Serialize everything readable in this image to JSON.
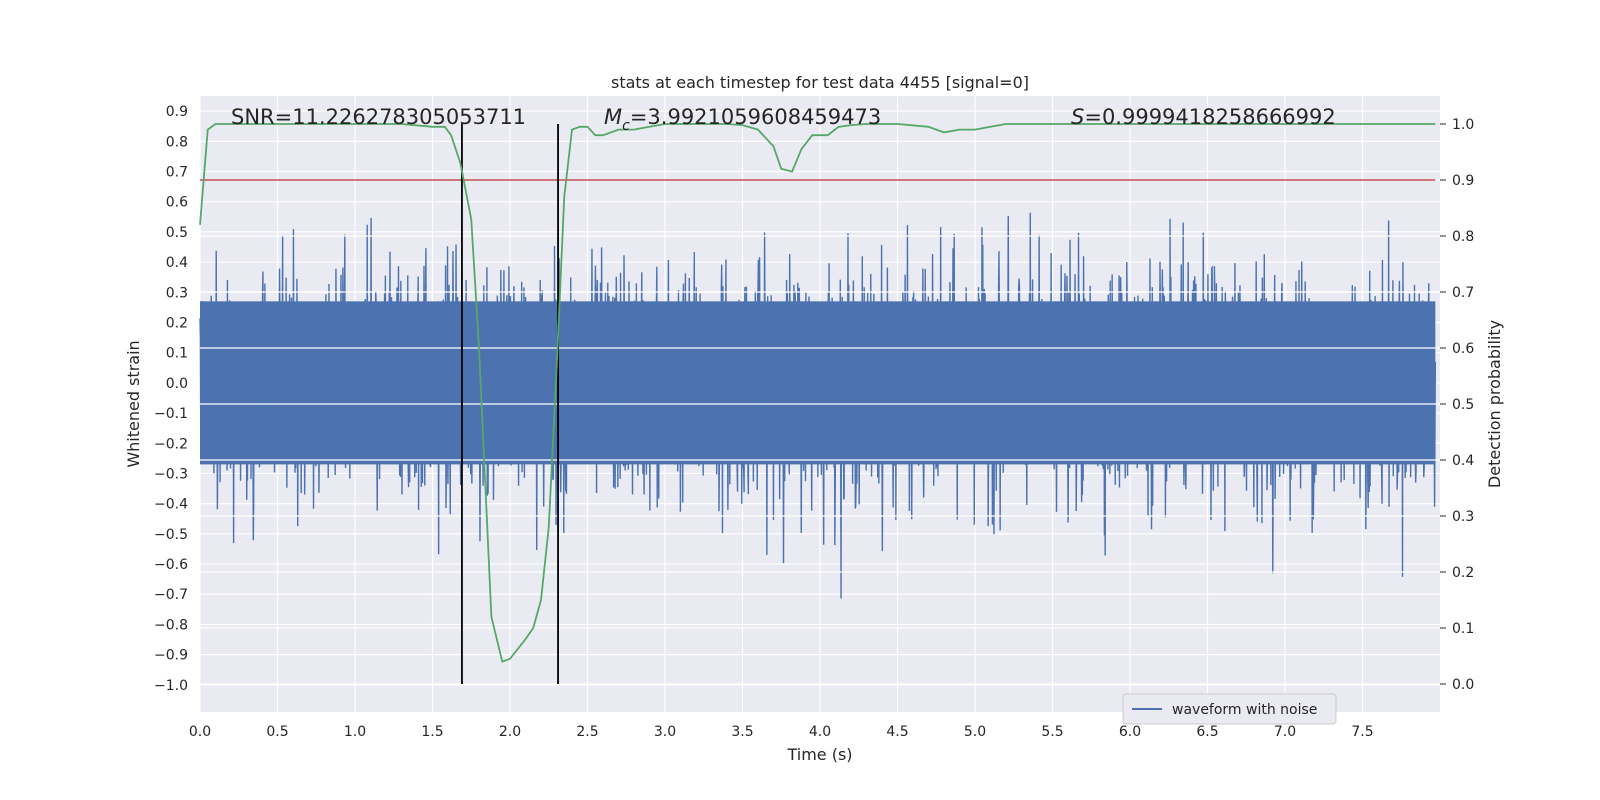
{
  "chart_data": {
    "type": "line",
    "title": "stats at each timestep for test data 4455 [signal=0]",
    "xlabel": "Time (s)",
    "ylabel_left": "Whitened strain",
    "ylabel_right": "Detection probability",
    "xlim": [
      0.0,
      8.0
    ],
    "ylim_left": [
      -1.09,
      0.95
    ],
    "ylim_right": [
      -0.05,
      1.05
    ],
    "x_ticks": [
      "0.0",
      "0.5",
      "1.0",
      "1.5",
      "2.0",
      "2.5",
      "3.0",
      "3.5",
      "4.0",
      "4.5",
      "5.0",
      "5.5",
      "6.0",
      "6.5",
      "7.0",
      "7.5"
    ],
    "x_tick_values": [
      0.0,
      0.5,
      1.0,
      1.5,
      2.0,
      2.5,
      3.0,
      3.5,
      4.0,
      4.5,
      5.0,
      5.5,
      6.0,
      6.5,
      7.0,
      7.5
    ],
    "y_left_ticks": [
      "0.9",
      "0.8",
      "0.7",
      "0.6",
      "0.5",
      "0.4",
      "0.3",
      "0.2",
      "0.1",
      "0.0",
      "−0.1",
      "−0.2",
      "−0.3",
      "−0.4",
      "−0.5",
      "−0.6",
      "−0.7",
      "−0.8",
      "−0.9",
      "−1.0"
    ],
    "y_left_tick_values": [
      0.9,
      0.8,
      0.7,
      0.6,
      0.5,
      0.4,
      0.3,
      0.2,
      0.1,
      0.0,
      -0.1,
      -0.2,
      -0.3,
      -0.4,
      -0.5,
      -0.6,
      -0.7,
      -0.8,
      -0.9,
      -1.0
    ],
    "y_right_ticks": [
      "1.0",
      "0.9",
      "0.8",
      "0.7",
      "0.6",
      "0.5",
      "0.4",
      "0.3",
      "0.2",
      "0.1",
      "0.0"
    ],
    "y_right_tick_values": [
      1.0,
      0.9,
      0.8,
      0.7,
      0.6,
      0.5,
      0.4,
      0.3,
      0.2,
      0.1,
      0.0
    ],
    "annotations": {
      "snr": "SNR=11.226278305053711",
      "mc_symbol": "M",
      "mc_sub": "c",
      "mc_value": "=3.9921059608459473",
      "s_symbol": "S",
      "s_value": "=0.9999418258666992"
    },
    "legend": {
      "label": "waveform with noise",
      "placement": "lower-right"
    },
    "grid": true,
    "background_color": "#eaeaf2",
    "series": [
      {
        "name": "waveform with noise",
        "color": "#4c72b0",
        "axis": "left",
        "description": "whitened noise strain, sampled densely between approx -1.0 and 0.82"
      },
      {
        "color": "#55a868",
        "axis": "right",
        "x": [
          0.0,
          0.05,
          0.1,
          0.15,
          0.2,
          0.3,
          0.5,
          0.7,
          0.9,
          1.1,
          1.3,
          1.5,
          1.58,
          1.62,
          1.68,
          1.75,
          1.8,
          1.88,
          1.95,
          2.0,
          2.1,
          2.15,
          2.2,
          2.25,
          2.3,
          2.35,
          2.4,
          2.45,
          2.5,
          2.55,
          2.6,
          2.7,
          2.8,
          2.9,
          3.0,
          3.1,
          3.2,
          3.3,
          3.4,
          3.5,
          3.6,
          3.7,
          3.75,
          3.82,
          3.88,
          3.95,
          4.0,
          4.05,
          4.12,
          4.2,
          4.3,
          4.5,
          4.7,
          4.8,
          4.9,
          5.0,
          5.1,
          5.2,
          5.4,
          5.6,
          6.0,
          6.5,
          7.0,
          7.5,
          7.97
        ],
        "values": [
          0.82,
          0.99,
          1.0,
          1.0,
          1.0,
          1.0,
          1.0,
          1.0,
          1.0,
          1.0,
          1.0,
          0.995,
          0.995,
          0.98,
          0.93,
          0.83,
          0.6,
          0.12,
          0.04,
          0.045,
          0.08,
          0.1,
          0.15,
          0.28,
          0.56,
          0.87,
          0.99,
          0.995,
          0.995,
          0.98,
          0.98,
          0.99,
          0.99,
          0.995,
          1.0,
          1.0,
          1.0,
          1.0,
          1.0,
          0.998,
          0.99,
          0.96,
          0.92,
          0.915,
          0.955,
          0.98,
          0.98,
          0.98,
          0.995,
          0.998,
          1.0,
          1.0,
          0.995,
          0.985,
          0.99,
          0.99,
          0.995,
          1.0,
          1.0,
          1.0,
          1.0,
          1.0,
          1.0,
          1.0,
          1.0
        ]
      },
      {
        "color": "#c44e52",
        "axis": "right",
        "constant": 0.9
      }
    ],
    "vertical_lines": [
      {
        "x": 1.69,
        "color": "#000000"
      },
      {
        "x": 2.31,
        "color": "#000000"
      }
    ],
    "right_axis_gridlines": [
      0.9,
      0.8,
      0.7,
      0.6,
      0.5,
      0.4,
      0.3,
      0.2,
      0.1,
      0.0
    ]
  }
}
